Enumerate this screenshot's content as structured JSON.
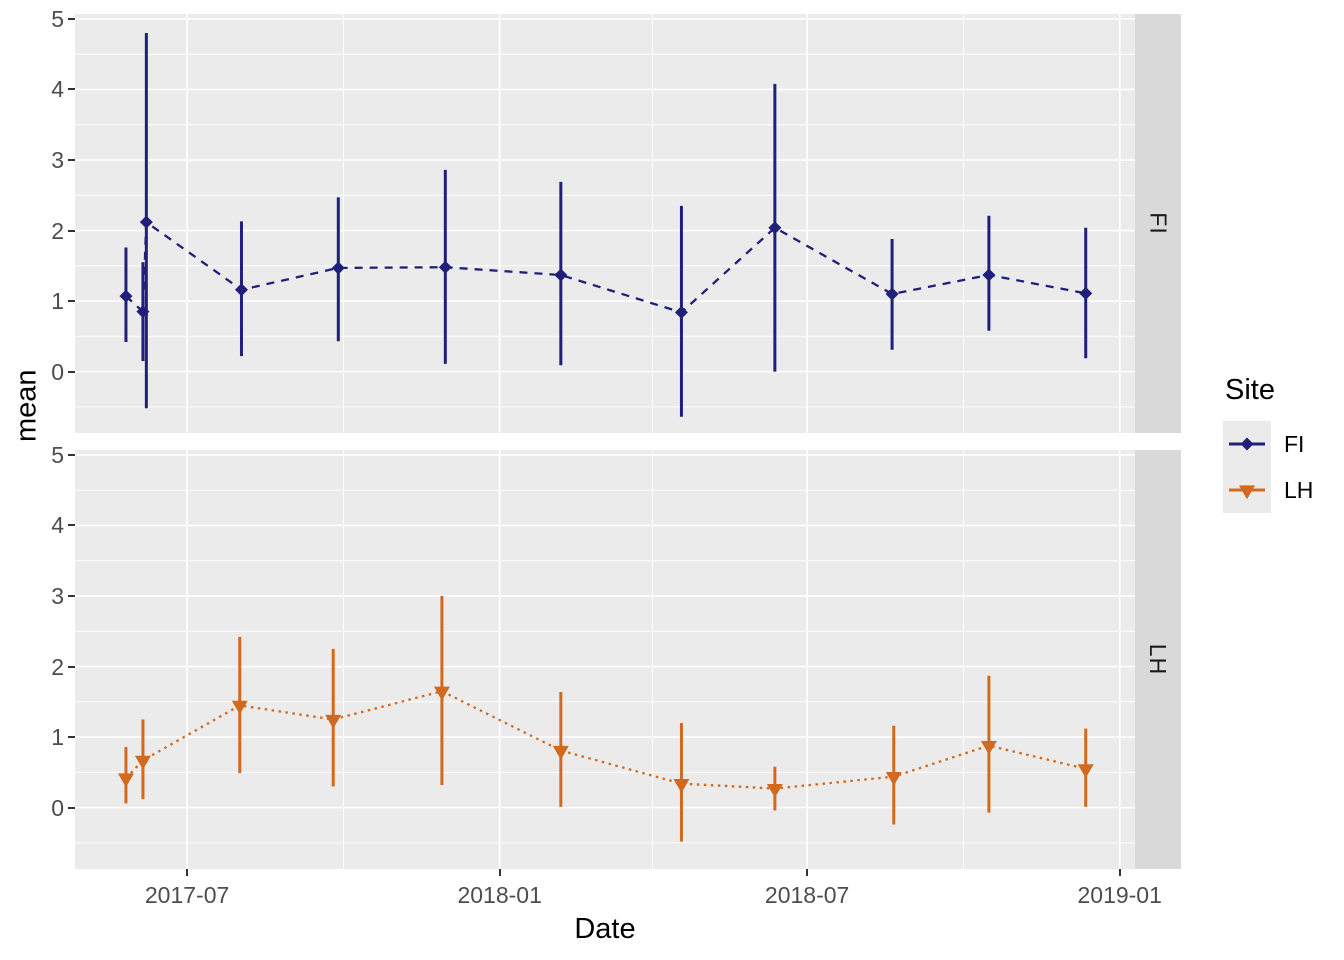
{
  "figure": {
    "background": "#ffffff",
    "panel_background": "#ebebeb",
    "grid_color": "#ffffff",
    "strip_background": "#d9d9d9",
    "tick_color": "#333333",
    "tick_label_color": "#4d4d4d",
    "axis_title_color": "#000000"
  },
  "axes": {
    "x": {
      "label": "Date",
      "tick_labels": [
        "2017-07",
        "2018-01",
        "2018-07",
        "2019-01"
      ],
      "tick_dates": [
        "2017-07-01",
        "2018-01-01",
        "2018-07-01",
        "2019-01-01"
      ],
      "minor_dates": [
        "2017-10-01",
        "2018-04-01",
        "2018-10-01"
      ],
      "domain": [
        "2017-04-26",
        "2019-01-10"
      ]
    },
    "y": {
      "label": "mean",
      "tick_values": [
        5,
        4,
        3,
        2,
        1,
        0
      ],
      "minor_values": [
        -0.5,
        0.5,
        1.5,
        2.5,
        3.5,
        4.5
      ],
      "domain": [
        -0.87,
        5.07
      ]
    }
  },
  "facets": [
    {
      "label": "FI"
    },
    {
      "label": "LH"
    }
  ],
  "legend": {
    "title": "Site",
    "entries": [
      {
        "label": "FI",
        "color": "#20207a",
        "marker": "diamond",
        "linetype": "dashed"
      },
      {
        "label": "LH",
        "color": "#d2691e",
        "marker": "triangle-down",
        "linetype": "dotted"
      }
    ]
  },
  "chart_data": [
    {
      "type": "line",
      "facet": "FI",
      "xlabel": "Date",
      "ylabel": "mean",
      "ylim": [
        -0.87,
        5.07
      ],
      "series": [
        {
          "name": "FI",
          "color": "#20207a",
          "marker": "diamond",
          "linetype": "dashed",
          "points": [
            {
              "date": "2017-05-26",
              "mean": 1.07,
              "lo": 0.42,
              "hi": 1.76
            },
            {
              "date": "2017-06-05",
              "mean": 0.85,
              "lo": 0.15,
              "hi": 1.55
            },
            {
              "date": "2017-06-07",
              "mean": 2.12,
              "lo": -0.52,
              "hi": 4.8
            },
            {
              "date": "2017-08-02",
              "mean": 1.16,
              "lo": 0.22,
              "hi": 2.13
            },
            {
              "date": "2017-09-28",
              "mean": 1.47,
              "lo": 0.43,
              "hi": 2.47
            },
            {
              "date": "2017-11-30",
              "mean": 1.48,
              "lo": 0.11,
              "hi": 2.86
            },
            {
              "date": "2018-02-06",
              "mean": 1.37,
              "lo": 0.09,
              "hi": 2.69
            },
            {
              "date": "2018-04-18",
              "mean": 0.84,
              "lo": -0.64,
              "hi": 2.35
            },
            {
              "date": "2018-06-12",
              "mean": 2.04,
              "lo": 0.0,
              "hi": 4.08
            },
            {
              "date": "2018-08-20",
              "mean": 1.1,
              "lo": 0.31,
              "hi": 1.88
            },
            {
              "date": "2018-10-16",
              "mean": 1.37,
              "lo": 0.58,
              "hi": 2.21
            },
            {
              "date": "2018-12-12",
              "mean": 1.11,
              "lo": 0.19,
              "hi": 2.04
            }
          ]
        }
      ]
    },
    {
      "type": "line",
      "facet": "LH",
      "xlabel": "Date",
      "ylabel": "mean",
      "ylim": [
        -0.87,
        5.07
      ],
      "series": [
        {
          "name": "LH",
          "color": "#d2691e",
          "marker": "triangle-down",
          "linetype": "dotted",
          "points": [
            {
              "date": "2017-05-26",
              "mean": 0.42,
              "lo": 0.06,
              "hi": 0.86
            },
            {
              "date": "2017-06-05",
              "mean": 0.67,
              "lo": 0.12,
              "hi": 1.25
            },
            {
              "date": "2017-08-01",
              "mean": 1.45,
              "lo": 0.49,
              "hi": 2.42
            },
            {
              "date": "2017-09-25",
              "mean": 1.25,
              "lo": 0.3,
              "hi": 2.25
            },
            {
              "date": "2017-11-28",
              "mean": 1.65,
              "lo": 0.32,
              "hi": 3.0
            },
            {
              "date": "2018-02-06",
              "mean": 0.81,
              "lo": 0.01,
              "hi": 1.64
            },
            {
              "date": "2018-04-18",
              "mean": 0.34,
              "lo": -0.48,
              "hi": 1.2
            },
            {
              "date": "2018-06-12",
              "mean": 0.27,
              "lo": -0.04,
              "hi": 0.58
            },
            {
              "date": "2018-08-21",
              "mean": 0.44,
              "lo": -0.24,
              "hi": 1.16
            },
            {
              "date": "2018-10-16",
              "mean": 0.88,
              "lo": -0.07,
              "hi": 1.87
            },
            {
              "date": "2018-12-12",
              "mean": 0.55,
              "lo": 0.01,
              "hi": 1.12
            }
          ]
        }
      ]
    }
  ]
}
